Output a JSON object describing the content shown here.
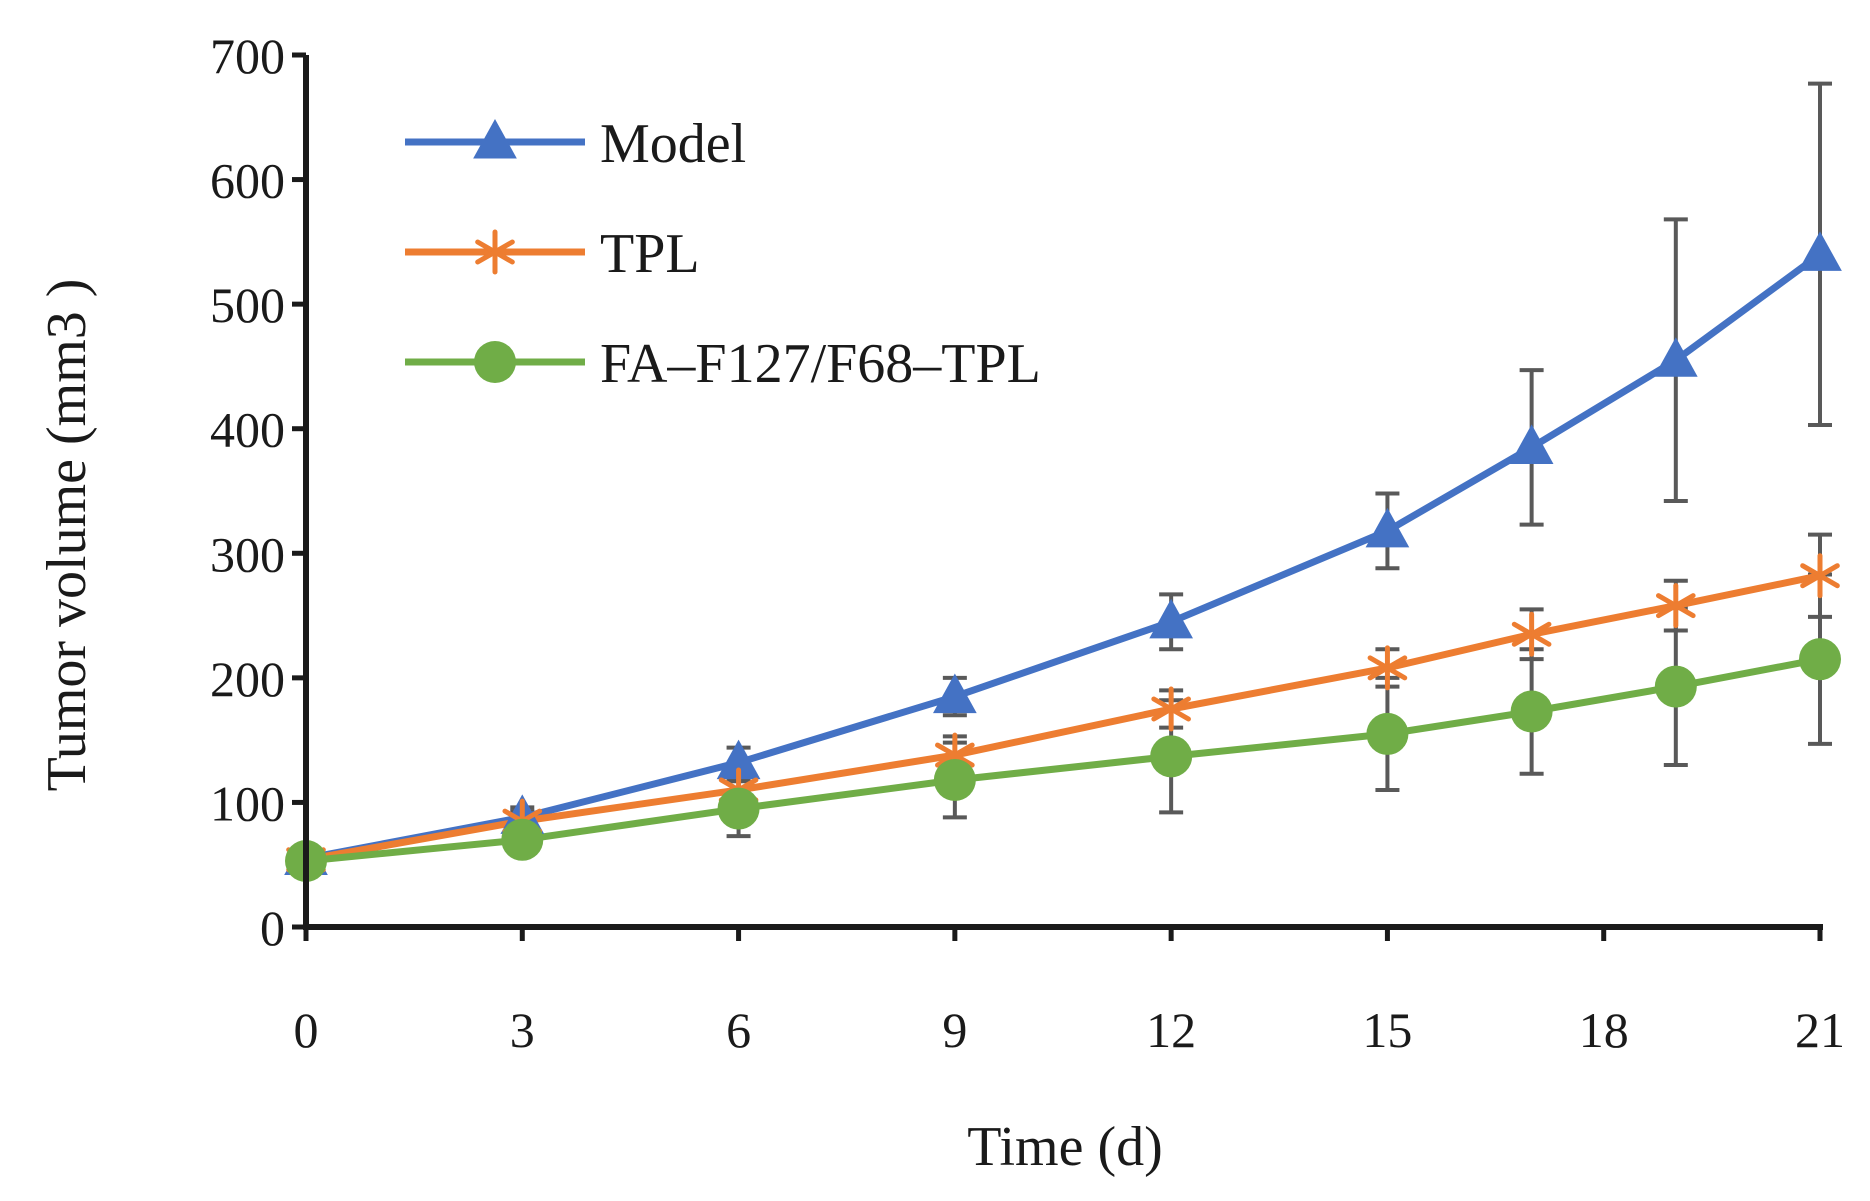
{
  "chart_data": {
    "type": "line",
    "title": "",
    "xlabel": "Time (d)",
    "ylabel": "Tumor volume (mm3 )",
    "xlim": [
      0,
      21
    ],
    "ylim": [
      0,
      700
    ],
    "xticks": [
      0,
      3,
      6,
      9,
      12,
      15,
      18,
      21
    ],
    "yticks": [
      0,
      100,
      200,
      300,
      400,
      500,
      600,
      700
    ],
    "grid": false,
    "legend": "top-left",
    "x": [
      0,
      3,
      6,
      9,
      12,
      15,
      17,
      19,
      21
    ],
    "series": [
      {
        "name": "Model",
        "color": "#4472C4",
        "marker": "triangle",
        "values": [
          55,
          88,
          132,
          185,
          245,
          318,
          385,
          455,
          540
        ],
        "errors": [
          5,
          8,
          12,
          15,
          22,
          30,
          62,
          113,
          137
        ]
      },
      {
        "name": "TPL",
        "color": "#ED7D31",
        "marker": "asterisk",
        "values": [
          54,
          85,
          110,
          138,
          175,
          208,
          235,
          258,
          282
        ],
        "errors": [
          5,
          8,
          10,
          15,
          15,
          15,
          20,
          20,
          33
        ]
      },
      {
        "name": "FA–F127/F68–TPL",
        "color": "#70AD47",
        "marker": "circle",
        "values": [
          53,
          70,
          95,
          118,
          137,
          155,
          173,
          193,
          215
        ],
        "errors": [
          5,
          12,
          22,
          30,
          45,
          45,
          50,
          63,
          68
        ]
      }
    ]
  }
}
